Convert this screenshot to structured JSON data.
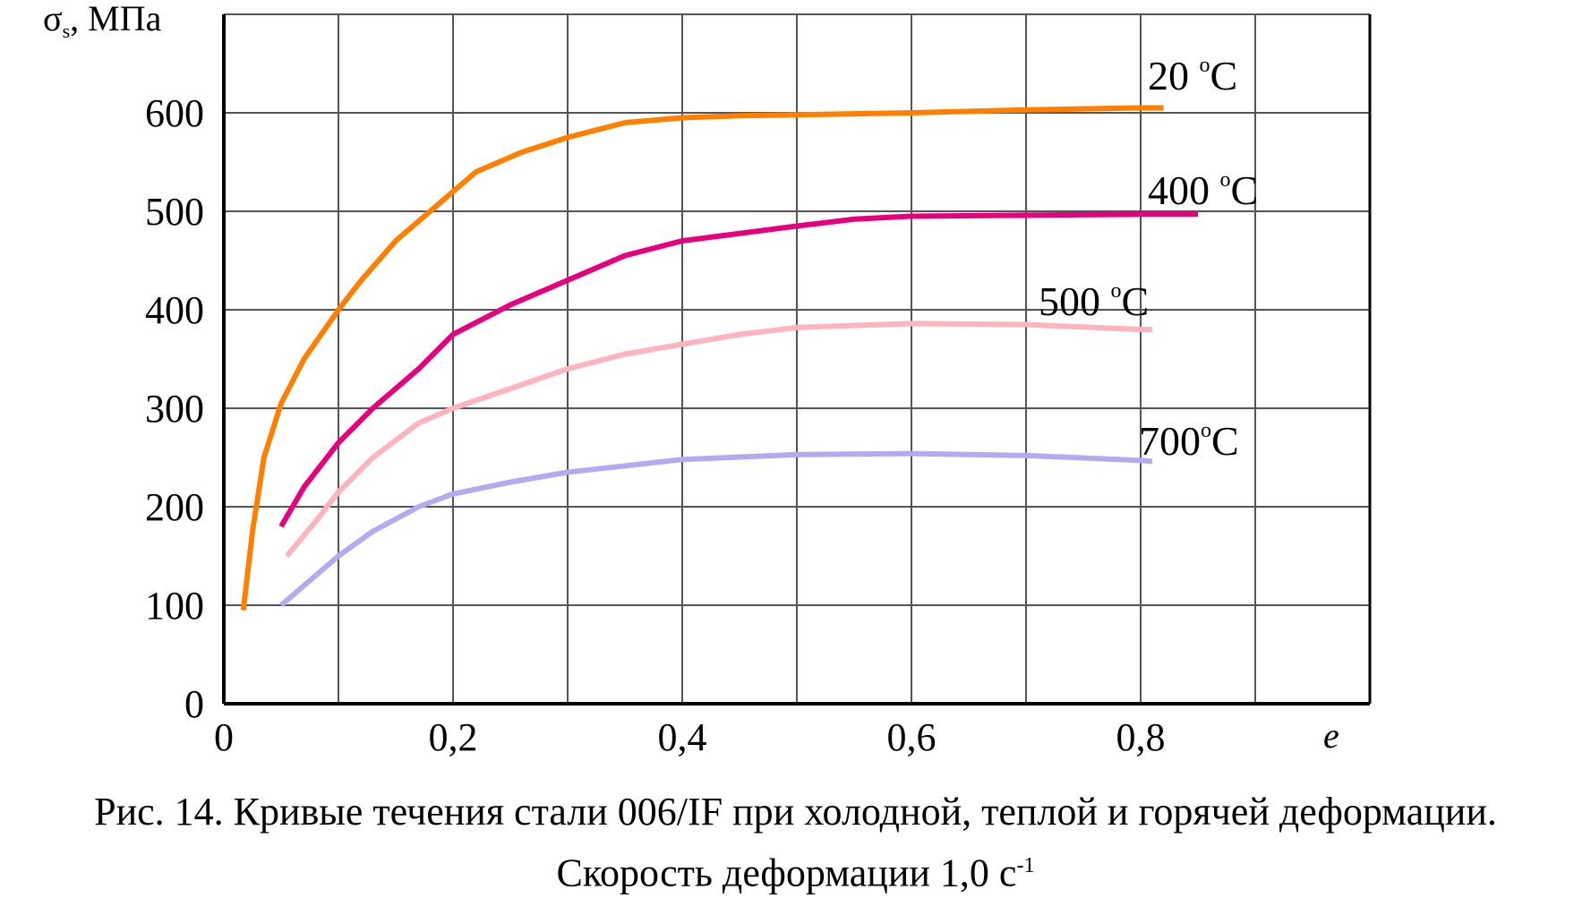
{
  "chart_data": {
    "type": "line",
    "ylabel": "σ",
    "ylabel_sub": "s",
    "ylabel_unit": ", МПа",
    "xlabel": "e",
    "xlim": [
      0,
      1.0
    ],
    "ylim": [
      0,
      700
    ],
    "x_ticks": [
      0,
      0.1,
      0.2,
      0.3,
      0.4,
      0.5,
      0.6,
      0.7,
      0.8,
      0.9,
      1.0
    ],
    "x_tick_labels": [
      {
        "value": 0,
        "label": "0"
      },
      {
        "value": 0.2,
        "label": "0,2"
      },
      {
        "value": 0.4,
        "label": "0,4"
      },
      {
        "value": 0.6,
        "label": "0,6"
      },
      {
        "value": 0.8,
        "label": "0,8"
      }
    ],
    "y_ticks": [
      0,
      100,
      200,
      300,
      400,
      500,
      600,
      700
    ],
    "y_tick_labels": [
      {
        "value": 0,
        "label": "0"
      },
      {
        "value": 100,
        "label": "100"
      },
      {
        "value": 200,
        "label": "200"
      },
      {
        "value": 300,
        "label": "300"
      },
      {
        "value": 400,
        "label": "400"
      },
      {
        "value": 500,
        "label": "500"
      },
      {
        "value": 600,
        "label": "600"
      }
    ],
    "grid": true,
    "series": [
      {
        "name": "20 °С",
        "color": "#ff7f00",
        "x": [
          0.017,
          0.025,
          0.035,
          0.05,
          0.07,
          0.1,
          0.12,
          0.15,
          0.2,
          0.22,
          0.26,
          0.3,
          0.35,
          0.4,
          0.45,
          0.5,
          0.6,
          0.7,
          0.8,
          0.82
        ],
        "y": [
          95,
          175,
          250,
          305,
          350,
          400,
          430,
          470,
          520,
          540,
          560,
          575,
          590,
          595,
          597,
          598,
          600,
          603,
          605,
          605
        ]
      },
      {
        "name": "400 °С",
        "color": "#e6007e",
        "x": [
          0.05,
          0.07,
          0.1,
          0.13,
          0.17,
          0.2,
          0.25,
          0.3,
          0.35,
          0.4,
          0.5,
          0.55,
          0.6,
          0.7,
          0.8,
          0.85
        ],
        "y": [
          180,
          220,
          265,
          300,
          340,
          375,
          405,
          430,
          455,
          470,
          485,
          492,
          495,
          496,
          497,
          497
        ]
      },
      {
        "name": "500 °С",
        "color": "#ffb3be",
        "x": [
          0.055,
          0.08,
          0.1,
          0.13,
          0.17,
          0.2,
          0.25,
          0.3,
          0.35,
          0.4,
          0.45,
          0.5,
          0.6,
          0.7,
          0.8,
          0.81
        ],
        "y": [
          150,
          185,
          215,
          250,
          285,
          300,
          320,
          340,
          355,
          365,
          375,
          382,
          386,
          385,
          380,
          380
        ]
      },
      {
        "name": "700°С",
        "color": "#b4aaf0",
        "x": [
          0.05,
          0.08,
          0.1,
          0.13,
          0.17,
          0.2,
          0.25,
          0.3,
          0.4,
          0.5,
          0.6,
          0.7,
          0.8,
          0.81
        ],
        "y": [
          100,
          130,
          150,
          175,
          200,
          213,
          225,
          235,
          248,
          253,
          254,
          252,
          247,
          246
        ]
      }
    ],
    "series_label_parts": [
      {
        "num": "20 ",
        "deg": "о",
        "unit": "С"
      },
      {
        "num": "400 ",
        "deg": "о",
        "unit": "С"
      },
      {
        "num": "500 ",
        "deg": "о",
        "unit": "С"
      },
      {
        "num": "700",
        "deg": "о",
        "unit": "С"
      }
    ]
  },
  "caption": {
    "line1": "Рис. 14. Кривые течения стали 006/IF при холодной, теплой и горячей деформации.",
    "line2": "Скорость деформации 1,0 с",
    "line2_sup": "-1"
  }
}
